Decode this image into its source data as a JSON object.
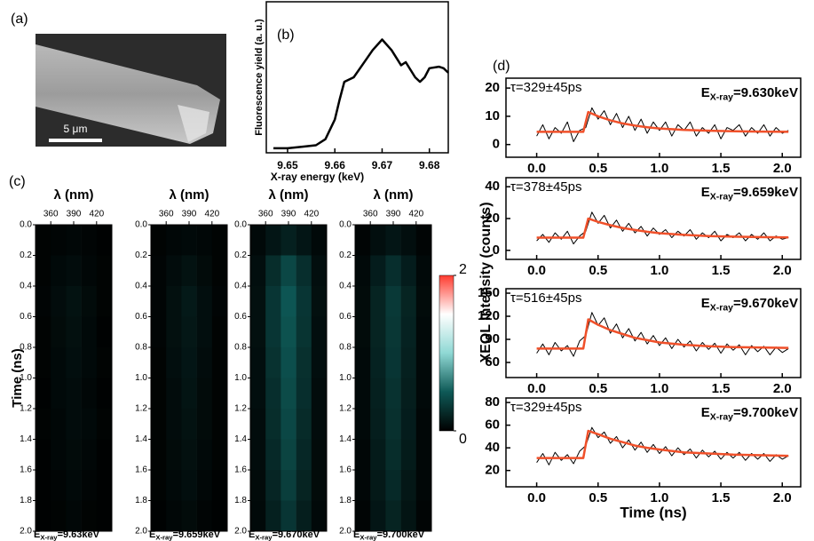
{
  "panel_a": {
    "label": "(a)",
    "scale_bar": "5 μm"
  },
  "chart_data": [
    {
      "type": "line",
      "panel_label": "(b)",
      "ylabel": "Fluorescence yield (a. u.)",
      "xlabel": "X-ray energy (keV)",
      "x": [
        9.647,
        9.65,
        9.653,
        9.656,
        9.658,
        9.66,
        9.661,
        9.662,
        9.664,
        9.666,
        9.668,
        9.67,
        9.672,
        9.674,
        9.675,
        9.677,
        9.678,
        9.679,
        9.68,
        9.682,
        9.683,
        9.684
      ],
      "values": [
        0.03,
        0.03,
        0.04,
        0.05,
        0.09,
        0.22,
        0.35,
        0.47,
        0.5,
        0.59,
        0.68,
        0.75,
        0.68,
        0.58,
        0.6,
        0.5,
        0.47,
        0.5,
        0.56,
        0.57,
        0.56,
        0.53
      ],
      "color": "#000000",
      "xlim": [
        9.6455,
        9.684
      ],
      "ylim": [
        0,
        1
      ],
      "xticks": [
        9.65,
        9.66,
        9.67,
        9.68
      ]
    },
    {
      "type": "heatmap",
      "panel_label": "(c)",
      "xlabel": "λ (nm)",
      "ylabel": "Time (ns)",
      "energy_label": [
        "E",
        "X-ray",
        "=9.63keV"
      ],
      "xlim": [
        340,
        440
      ],
      "xticks": [
        360,
        390,
        420
      ],
      "ylim": [
        0,
        2
      ],
      "yticks": [
        {
          "value": 0,
          "label": "0.0"
        },
        0.2,
        0.4,
        0.6,
        0.8,
        {
          "value": 1,
          "label": "1.0"
        },
        1.2,
        1.4,
        1.6,
        1.8,
        {
          "value": 2,
          "label": "2.0"
        }
      ],
      "clim": [
        0,
        2
      ],
      "colormap": [
        "#000000",
        "#0e5956",
        "#8fd8d4",
        "#ffffff",
        "#ff3b2f"
      ],
      "values": [
        [
          0.02,
          0.03,
          0.04,
          0.03,
          0.01
        ],
        [
          0.02,
          0.05,
          0.07,
          0.04,
          0.02
        ],
        [
          0.03,
          0.07,
          0.1,
          0.06,
          0.02
        ],
        [
          0.02,
          0.06,
          0.09,
          0.05,
          0.01
        ],
        [
          0.02,
          0.05,
          0.08,
          0.05,
          0.02
        ],
        [
          0.01,
          0.05,
          0.07,
          0.04,
          0.01
        ],
        [
          0.02,
          0.04,
          0.07,
          0.05,
          0.02
        ],
        [
          0.01,
          0.04,
          0.06,
          0.04,
          0.01
        ],
        [
          0.01,
          0.03,
          0.05,
          0.03,
          0.01
        ],
        [
          0.01,
          0.02,
          0.04,
          0.02,
          0.01
        ]
      ]
    },
    {
      "type": "heatmap",
      "xlabel": "λ (nm)",
      "energy_label": [
        "E",
        "X-ray",
        "=9.659keV"
      ],
      "xlim": [
        340,
        440
      ],
      "xticks": [
        360,
        390,
        420
      ],
      "ylim": [
        0,
        2
      ],
      "yticks": [
        {
          "value": 0,
          "label": "0.0"
        },
        0.2,
        0.4,
        0.6,
        0.8,
        {
          "value": 1,
          "label": "1.0"
        },
        1.2,
        1.4,
        1.6,
        1.8,
        {
          "value": 2,
          "label": "2.0"
        }
      ],
      "clim": [
        0,
        2
      ],
      "colormap": [
        "#000000",
        "#0e5956",
        "#8fd8d4",
        "#ffffff",
        "#ff3b2f"
      ],
      "values": [
        [
          0.02,
          0.04,
          0.05,
          0.04,
          0.02
        ],
        [
          0.03,
          0.07,
          0.1,
          0.06,
          0.02
        ],
        [
          0.03,
          0.09,
          0.14,
          0.08,
          0.03
        ],
        [
          0.03,
          0.09,
          0.13,
          0.08,
          0.02
        ],
        [
          0.02,
          0.08,
          0.12,
          0.07,
          0.02
        ],
        [
          0.02,
          0.07,
          0.11,
          0.06,
          0.02
        ],
        [
          0.02,
          0.07,
          0.1,
          0.06,
          0.02
        ],
        [
          0.02,
          0.06,
          0.09,
          0.05,
          0.02
        ],
        [
          0.02,
          0.05,
          0.08,
          0.04,
          0.01
        ],
        [
          0.01,
          0.04,
          0.06,
          0.03,
          0.01
        ]
      ]
    },
    {
      "type": "heatmap",
      "xlabel": "λ (nm)",
      "energy_label": [
        "E",
        "X-ray",
        "=9.670keV"
      ],
      "xlim": [
        340,
        440
      ],
      "xticks": [
        360,
        390,
        420
      ],
      "ylim": [
        0,
        2
      ],
      "yticks": [
        {
          "value": 0,
          "label": "0.0"
        },
        0.2,
        0.4,
        0.6,
        0.8,
        {
          "value": 1,
          "label": "1.0"
        },
        1.2,
        1.4,
        1.6,
        1.8,
        {
          "value": 2,
          "label": "2.0"
        }
      ],
      "clim": [
        0,
        2
      ],
      "colormap": [
        "#000000",
        "#0e5956",
        "#8fd8d4",
        "#ffffff",
        "#ff3b2f"
      ],
      "values": [
        [
          0.05,
          0.12,
          0.18,
          0.12,
          0.05
        ],
        [
          0.08,
          0.25,
          0.4,
          0.26,
          0.08
        ],
        [
          0.09,
          0.3,
          0.48,
          0.3,
          0.09
        ],
        [
          0.09,
          0.3,
          0.46,
          0.29,
          0.08
        ],
        [
          0.08,
          0.28,
          0.44,
          0.27,
          0.08
        ],
        [
          0.08,
          0.26,
          0.42,
          0.26,
          0.07
        ],
        [
          0.07,
          0.25,
          0.4,
          0.24,
          0.07
        ],
        [
          0.07,
          0.23,
          0.38,
          0.22,
          0.06
        ],
        [
          0.06,
          0.21,
          0.35,
          0.2,
          0.06
        ],
        [
          0.05,
          0.18,
          0.3,
          0.17,
          0.05
        ]
      ]
    },
    {
      "type": "heatmap",
      "xlabel": "λ (nm)",
      "energy_label": [
        "E",
        "X-ray",
        "=9.700keV"
      ],
      "xlim": [
        340,
        440
      ],
      "xticks": [
        360,
        390,
        420
      ],
      "ylim": [
        0,
        2
      ],
      "yticks": [
        {
          "value": 0,
          "label": "0.0"
        },
        0.2,
        0.4,
        0.6,
        0.8,
        {
          "value": 1,
          "label": "1.0"
        },
        1.2,
        1.4,
        1.6,
        1.8,
        {
          "value": 2,
          "label": "2.0"
        }
      ],
      "clim": [
        0,
        2
      ],
      "colormap": [
        "#000000",
        "#0e5956",
        "#8fd8d4",
        "#ffffff",
        "#ff3b2f"
      ],
      "colorbar_ticks": [
        0,
        2
      ],
      "values": [
        [
          0.03,
          0.08,
          0.12,
          0.08,
          0.03
        ],
        [
          0.05,
          0.16,
          0.26,
          0.16,
          0.05
        ],
        [
          0.06,
          0.2,
          0.32,
          0.2,
          0.06
        ],
        [
          0.06,
          0.2,
          0.31,
          0.19,
          0.05
        ],
        [
          0.05,
          0.19,
          0.3,
          0.18,
          0.05
        ],
        [
          0.05,
          0.18,
          0.28,
          0.17,
          0.05
        ],
        [
          0.05,
          0.17,
          0.27,
          0.16,
          0.04
        ],
        [
          0.04,
          0.15,
          0.25,
          0.15,
          0.04
        ],
        [
          0.04,
          0.14,
          0.23,
          0.13,
          0.04
        ],
        [
          0.03,
          0.12,
          0.2,
          0.11,
          0.03
        ]
      ]
    },
    {
      "type": "line",
      "panel_label": "(d)",
      "ylabel": "XEOL intensity (counts)",
      "tau_label": "τ=329±45ps",
      "energy_label": [
        "E",
        "X-ray",
        "=9.630keV"
      ],
      "xlim": [
        -0.25,
        2.15
      ],
      "ylim": [
        -4.5,
        23.5
      ],
      "yticks": [
        0,
        10,
        20
      ],
      "xticks": [
        {
          "value": 0,
          "label": "0.0"
        },
        0.5,
        {
          "value": 1,
          "label": "1.0"
        },
        1.5,
        {
          "value": 2,
          "label": "2.0"
        }
      ],
      "series": [
        {
          "color": "#000000",
          "x": [
            0,
            0.05,
            0.1,
            0.15,
            0.2,
            0.25,
            0.3,
            0.35,
            0.4,
            0.45,
            0.5,
            0.55,
            0.6,
            0.65,
            0.7,
            0.75,
            0.8,
            0.85,
            0.9,
            0.95,
            1.0,
            1.05,
            1.1,
            1.15,
            1.2,
            1.25,
            1.3,
            1.35,
            1.4,
            1.45,
            1.5,
            1.55,
            1.6,
            1.65,
            1.7,
            1.75,
            1.8,
            1.85,
            1.9,
            1.95,
            2.0,
            2.05
          ],
          "values": [
            3,
            7,
            2,
            6,
            4,
            8,
            1,
            5,
            6,
            13,
            9,
            12,
            7,
            11,
            6,
            10,
            5,
            9,
            4,
            8,
            5,
            8,
            3,
            7,
            5,
            8,
            3,
            6,
            4,
            7,
            2,
            6,
            5,
            7,
            3,
            6,
            4,
            7,
            3,
            6,
            4,
            5
          ]
        },
        {
          "color": "#f0502a",
          "x": [
            0,
            0.38,
            0.42,
            0.5,
            0.6,
            0.7,
            0.8,
            0.9,
            1.0,
            1.2,
            1.4,
            1.6,
            1.8,
            2.05
          ],
          "values": [
            4.5,
            4.5,
            11.5,
            10.0,
            8.6,
            7.5,
            6.7,
            6.1,
            5.7,
            5.2,
            4.9,
            4.7,
            4.6,
            4.5
          ]
        }
      ]
    },
    {
      "type": "line",
      "tau_label": "τ=378±45ps",
      "energy_label": [
        "E",
        "X-ray",
        "=9.659keV"
      ],
      "xlim": [
        -0.25,
        2.15
      ],
      "ylim": [
        -5.7,
        45.7
      ],
      "yticks": [
        0,
        20,
        40
      ],
      "xticks": [
        {
          "value": 0,
          "label": "0.0"
        },
        0.5,
        {
          "value": 1,
          "label": "1.0"
        },
        1.5,
        {
          "value": 2,
          "label": "2.0"
        }
      ],
      "series": [
        {
          "color": "#000000",
          "x": [
            0,
            0.05,
            0.1,
            0.15,
            0.2,
            0.25,
            0.3,
            0.35,
            0.4,
            0.45,
            0.5,
            0.55,
            0.6,
            0.65,
            0.7,
            0.75,
            0.8,
            0.85,
            0.9,
            0.95,
            1.0,
            1.05,
            1.1,
            1.15,
            1.2,
            1.25,
            1.3,
            1.35,
            1.4,
            1.45,
            1.5,
            1.55,
            1.6,
            1.65,
            1.7,
            1.75,
            1.8,
            1.85,
            1.9,
            1.95,
            2.0,
            2.05
          ],
          "values": [
            6,
            10,
            5,
            11,
            7,
            12,
            4,
            9,
            12,
            24,
            17,
            22,
            14,
            19,
            12,
            17,
            11,
            15,
            9,
            14,
            10,
            13,
            8,
            12,
            9,
            13,
            7,
            11,
            8,
            12,
            6,
            10,
            8,
            11,
            6,
            10,
            7,
            11,
            6,
            9,
            7,
            8
          ]
        },
        {
          "color": "#f0502a",
          "x": [
            0,
            0.38,
            0.42,
            0.5,
            0.6,
            0.7,
            0.8,
            0.9,
            1.0,
            1.2,
            1.4,
            1.6,
            1.8,
            2.05
          ],
          "values": [
            8,
            8,
            20,
            17.9,
            15.8,
            14.1,
            12.8,
            11.7,
            10.8,
            9.7,
            9.0,
            8.6,
            8.3,
            8.1
          ]
        }
      ]
    },
    {
      "type": "line",
      "tau_label": "τ=516±45ps",
      "energy_label": [
        "E",
        "X-ray",
        "=9.670keV"
      ],
      "xlim": [
        -0.25,
        2.15
      ],
      "ylim": [
        40.4,
        155.8
      ],
      "yticks": [
        60,
        90,
        120,
        150
      ],
      "xticks": [
        {
          "value": 0,
          "label": "0.0"
        },
        0.5,
        {
          "value": 1,
          "label": "1.0"
        },
        1.5,
        {
          "value": 2,
          "label": "2.0"
        }
      ],
      "series": [
        {
          "color": "#000000",
          "x": [
            0,
            0.05,
            0.1,
            0.15,
            0.2,
            0.25,
            0.3,
            0.35,
            0.4,
            0.45,
            0.5,
            0.55,
            0.6,
            0.65,
            0.7,
            0.75,
            0.8,
            0.85,
            0.9,
            0.95,
            1.0,
            1.05,
            1.1,
            1.15,
            1.2,
            1.25,
            1.3,
            1.35,
            1.4,
            1.45,
            1.5,
            1.55,
            1.6,
            1.65,
            1.7,
            1.75,
            1.8,
            1.85,
            1.9,
            1.95,
            2.0,
            2.05
          ],
          "values": [
            72,
            84,
            70,
            86,
            75,
            82,
            68,
            88,
            95,
            125,
            108,
            118,
            98,
            110,
            92,
            104,
            88,
            99,
            84,
            95,
            82,
            92,
            78,
            90,
            80,
            88,
            75,
            86,
            77,
            85,
            72,
            84,
            76,
            83,
            70,
            82,
            74,
            81,
            70,
            80,
            73,
            78
          ]
        },
        {
          "color": "#f0502a",
          "x": [
            0,
            0.38,
            0.42,
            0.5,
            0.6,
            0.7,
            0.8,
            0.9,
            1.0,
            1.2,
            1.4,
            1.6,
            1.8,
            2.05
          ],
          "values": [
            78,
            78,
            116,
            109,
            102,
            97,
            92,
            89,
            86,
            83,
            81,
            80,
            79.5,
            79
          ]
        }
      ]
    },
    {
      "type": "line",
      "tau_label": "τ=329±45ps",
      "energy_label": [
        "E",
        "X-ray",
        "=9.700keV"
      ],
      "xlabel": "Time (ns)",
      "xlim": [
        -0.25,
        2.15
      ],
      "ylim": [
        5.6,
        84
      ],
      "yticks": [
        20,
        40,
        60,
        80
      ],
      "xticks": [
        {
          "value": 0,
          "label": "0.0"
        },
        0.5,
        {
          "value": 1,
          "label": "1.0"
        },
        1.5,
        {
          "value": 2,
          "label": "2.0"
        }
      ],
      "series": [
        {
          "color": "#000000",
          "x": [
            0,
            0.05,
            0.1,
            0.15,
            0.2,
            0.25,
            0.3,
            0.35,
            0.4,
            0.45,
            0.5,
            0.55,
            0.6,
            0.65,
            0.7,
            0.75,
            0.8,
            0.85,
            0.9,
            0.95,
            1.0,
            1.05,
            1.1,
            1.15,
            1.2,
            1.25,
            1.3,
            1.35,
            1.4,
            1.45,
            1.5,
            1.55,
            1.6,
            1.65,
            1.7,
            1.75,
            1.8,
            1.85,
            1.9,
            1.95,
            2.0,
            2.05
          ],
          "values": [
            27,
            35,
            25,
            36,
            29,
            34,
            26,
            37,
            42,
            58,
            49,
            54,
            44,
            50,
            40,
            47,
            38,
            45,
            36,
            43,
            35,
            41,
            33,
            40,
            34,
            39,
            31,
            38,
            32,
            37,
            30,
            36,
            31,
            36,
            29,
            35,
            30,
            35,
            28,
            34,
            30,
            33
          ]
        },
        {
          "color": "#f0502a",
          "x": [
            0,
            0.38,
            0.42,
            0.5,
            0.6,
            0.7,
            0.8,
            0.9,
            1.0,
            1.2,
            1.4,
            1.6,
            1.8,
            2.05
          ],
          "values": [
            31,
            31,
            55,
            52,
            48,
            45,
            42,
            40,
            38.5,
            36,
            35,
            34,
            33.5,
            33
          ]
        }
      ]
    }
  ]
}
